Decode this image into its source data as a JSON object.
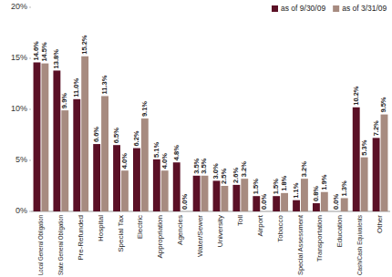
{
  "chart_data": {
    "type": "bar",
    "categories": [
      "Local General Obligation",
      "State General Obligation",
      "Pre-Refunded",
      "Hospital",
      "Special Tax",
      "Electric",
      "Appropriation",
      "Agencies",
      "Water/Sewer",
      "University",
      "Toll",
      "Airport",
      "Tobacco",
      "Special Assessment",
      "Transportation",
      "Education",
      "Cash/Cash Equivalents",
      "Other"
    ],
    "series": [
      {
        "name": "as of 9/30/09",
        "color": "#5b1026",
        "values": [
          14.6,
          13.8,
          11.0,
          6.6,
          6.5,
          6.2,
          5.1,
          4.8,
          3.5,
          3.0,
          2.6,
          1.5,
          1.5,
          1.1,
          0.8,
          0.0,
          10.2,
          7.2
        ],
        "value_labels": [
          "14.6%",
          "13.8%",
          "11.0%",
          "6.6%",
          "6.5%",
          "6.2%",
          "5.1%",
          "4.8%",
          "3.5%",
          "3.0%",
          "2.6%",
          "1.5%",
          "1.5%",
          "1.1%",
          "0.8%",
          "0.0%",
          "10.2%",
          "7.2%"
        ]
      },
      {
        "name": "as of 3/31/09",
        "color": "#a78b80",
        "values": [
          14.5,
          9.9,
          15.2,
          11.3,
          4.0,
          9.1,
          4.0,
          0.0,
          3.5,
          2.5,
          3.2,
          0.0,
          1.8,
          3.2,
          1.9,
          1.3,
          5.3,
          9.5
        ],
        "value_labels": [
          "14.5%",
          "9.9%",
          "15.2%",
          "11.3%",
          "4.0%",
          "9.1%",
          "4.0%",
          "0.0%",
          "3.5%",
          "2.5%",
          "3.2%",
          "0.0%",
          "1.8%",
          "3.2%",
          "1.9%",
          "1.3%",
          "5.3%",
          "9.5%"
        ]
      }
    ],
    "ylim": [
      0,
      20
    ],
    "yticks": [
      {
        "value": 0,
        "label": "0%"
      },
      {
        "value": 5,
        "label": "5%"
      },
      {
        "value": 10,
        "label": "10%"
      },
      {
        "value": 15,
        "label": "15%"
      },
      {
        "value": 20,
        "label": "20%"
      }
    ],
    "grid": false,
    "legend": "top-right",
    "data_labels": true
  }
}
